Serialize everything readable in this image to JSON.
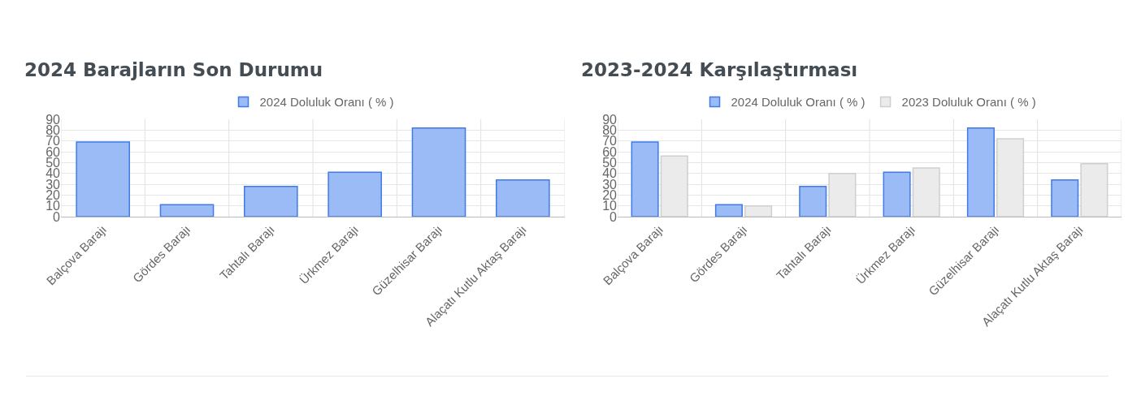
{
  "chart_data": [
    {
      "type": "bar",
      "title": "2024 Barajların Son Durumu",
      "categories": [
        "Balçova Barajı",
        "Gördes Barajı",
        "Tahtalı Barajı",
        "Ürkmez Barajı",
        "Güzelhisar Barajı",
        "Alaçatı Kutlu Aktaş Barajı"
      ],
      "series": [
        {
          "name": "2024 Doluluk Oranı ( % )",
          "color": "#9bbbf7",
          "values": [
            69,
            11,
            28,
            41,
            82,
            34
          ]
        }
      ],
      "ylim": [
        0,
        90
      ],
      "yticks": [
        0,
        10,
        20,
        30,
        40,
        50,
        60,
        70,
        80,
        90
      ],
      "grid": true,
      "legend": "top"
    },
    {
      "type": "bar",
      "title": "2023-2024 Karşılaştırması",
      "categories": [
        "Balçova Barajı",
        "Gördes Barajı",
        "Tahtalı Barajı",
        "Ürkmez Barajı",
        "Güzelhisar Barajı",
        "Alaçatı Kutlu Aktaş Barajı"
      ],
      "series": [
        {
          "name": "2024 Doluluk Oranı ( % )",
          "color": "#9bbbf7",
          "values": [
            69,
            11,
            28,
            41,
            82,
            34
          ]
        },
        {
          "name": "2023 Doluluk Oranı ( % )",
          "color": "#ebebeb",
          "values": [
            56,
            10,
            40,
            45,
            72,
            49
          ]
        }
      ],
      "ylim": [
        0,
        90
      ],
      "yticks": [
        0,
        10,
        20,
        30,
        40,
        50,
        60,
        70,
        80,
        90
      ],
      "grid": true,
      "legend": "top"
    }
  ]
}
